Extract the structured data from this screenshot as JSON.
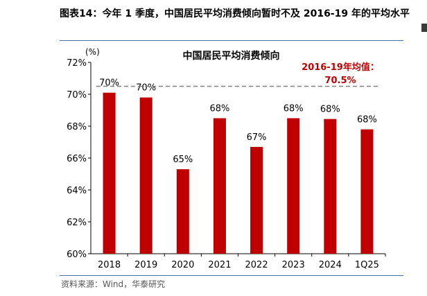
{
  "figure": {
    "label": "图表14：",
    "title": "今年 1 季度，中国居民平均消费倾向暂时不及 2016-19 年的平均水平",
    "source": "资料来源：Wind，华泰研究"
  },
  "chart_data": {
    "type": "bar",
    "title": "中国居民平均消费倾向",
    "unit_label": "(%)",
    "categories": [
      "2018",
      "2019",
      "2020",
      "2021",
      "2022",
      "2023",
      "2024",
      "1Q25"
    ],
    "values": [
      70.1,
      69.8,
      65.3,
      68.5,
      66.7,
      68.5,
      68.45,
      67.8
    ],
    "data_labels": [
      "70%",
      "70%",
      "65%",
      "68%",
      "67%",
      "68%",
      "68%",
      "68%"
    ],
    "ylim": [
      60,
      72
    ],
    "yticks": [
      60,
      62,
      64,
      66,
      68,
      70,
      72
    ],
    "ytick_labels": [
      "60%",
      "62%",
      "64%",
      "66%",
      "68%",
      "70%",
      "72%"
    ],
    "bar_color": "#c00000",
    "reference_line": {
      "value": 70.5,
      "label_line1": "2016-19年均值：",
      "label_line2": "70.5%",
      "color": "#808080",
      "label_color": "#c00000",
      "style": "dashed"
    },
    "grid": false,
    "legend": "none"
  }
}
